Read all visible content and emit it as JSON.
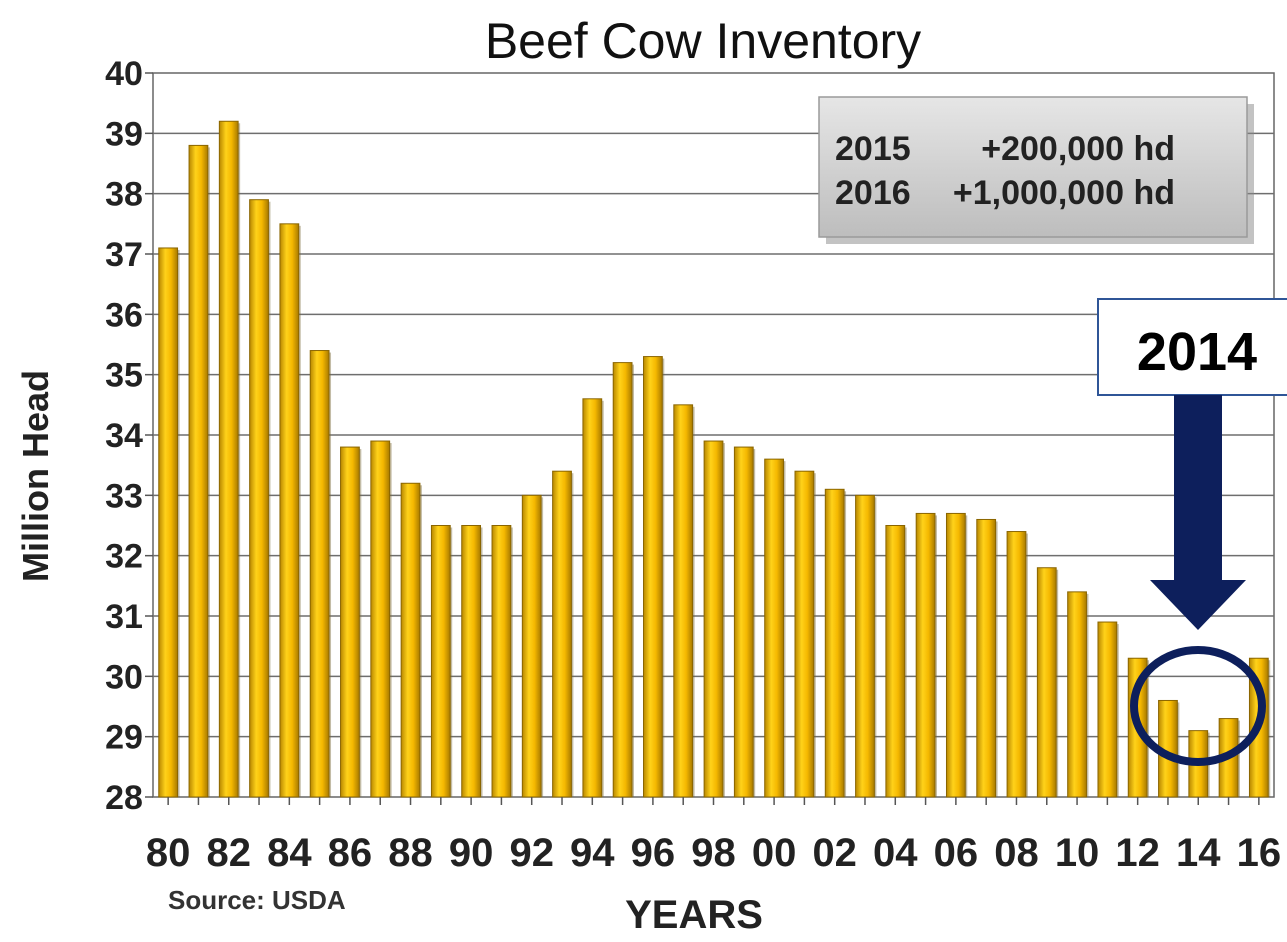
{
  "chart_data": {
    "type": "bar",
    "title": "Beef Cow Inventory",
    "ylabel": "Million Head",
    "xlabel": "YEARS",
    "ylim": [
      28,
      40
    ],
    "yticks": [
      28,
      29,
      30,
      31,
      32,
      33,
      34,
      35,
      36,
      37,
      38,
      39,
      40
    ],
    "grid": true,
    "categories": [
      "80",
      "81",
      "82",
      "83",
      "84",
      "85",
      "86",
      "87",
      "88",
      "89",
      "90",
      "91",
      "92",
      "93",
      "94",
      "95",
      "96",
      "97",
      "98",
      "99",
      "00",
      "01",
      "02",
      "03",
      "04",
      "05",
      "06",
      "07",
      "08",
      "09",
      "10",
      "11",
      "12",
      "13",
      "14",
      "15",
      "16"
    ],
    "x_tick_labels": [
      "80",
      "82",
      "84",
      "86",
      "88",
      "90",
      "92",
      "94",
      "96",
      "98",
      "00",
      "02",
      "04",
      "06",
      "08",
      "10",
      "12",
      "14",
      "16"
    ],
    "values": [
      37.1,
      38.8,
      39.2,
      37.9,
      37.5,
      35.4,
      33.8,
      33.9,
      33.2,
      32.5,
      32.5,
      32.5,
      33.0,
      33.4,
      34.6,
      35.2,
      35.3,
      34.5,
      33.9,
      33.8,
      33.6,
      33.4,
      33.1,
      33.0,
      32.5,
      32.7,
      32.7,
      32.6,
      32.4,
      31.8,
      31.4,
      30.9,
      30.3,
      29.6,
      29.1,
      29.3,
      30.3
    ],
    "bar_color": "#F5B800",
    "source": "Source: USDA",
    "annotation_box": {
      "lines": [
        {
          "year": "2015",
          "change": "+200,000 hd"
        },
        {
          "year": "2016",
          "change": "+1,000,000 hd"
        }
      ]
    },
    "callout": {
      "label": "2014",
      "color": "#0D1F5C"
    }
  }
}
